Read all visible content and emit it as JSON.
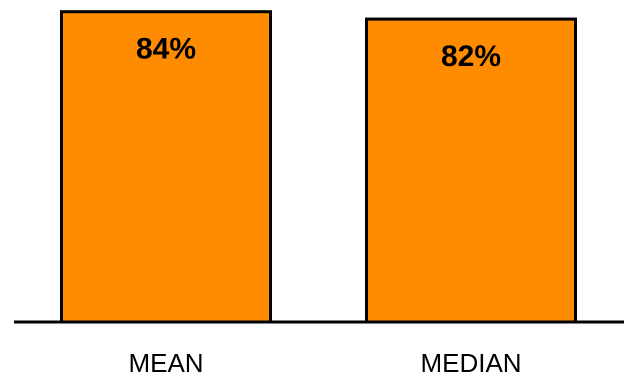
{
  "chart_data": {
    "type": "bar",
    "categories": [
      "MEAN",
      "MEDIAN"
    ],
    "values": [
      84,
      82
    ],
    "data_labels": [
      "84%",
      "82%"
    ],
    "ylim": [
      0,
      85
    ],
    "grid": false,
    "bar_color": "#FF8C00",
    "bar_outline_color": "#000000"
  }
}
